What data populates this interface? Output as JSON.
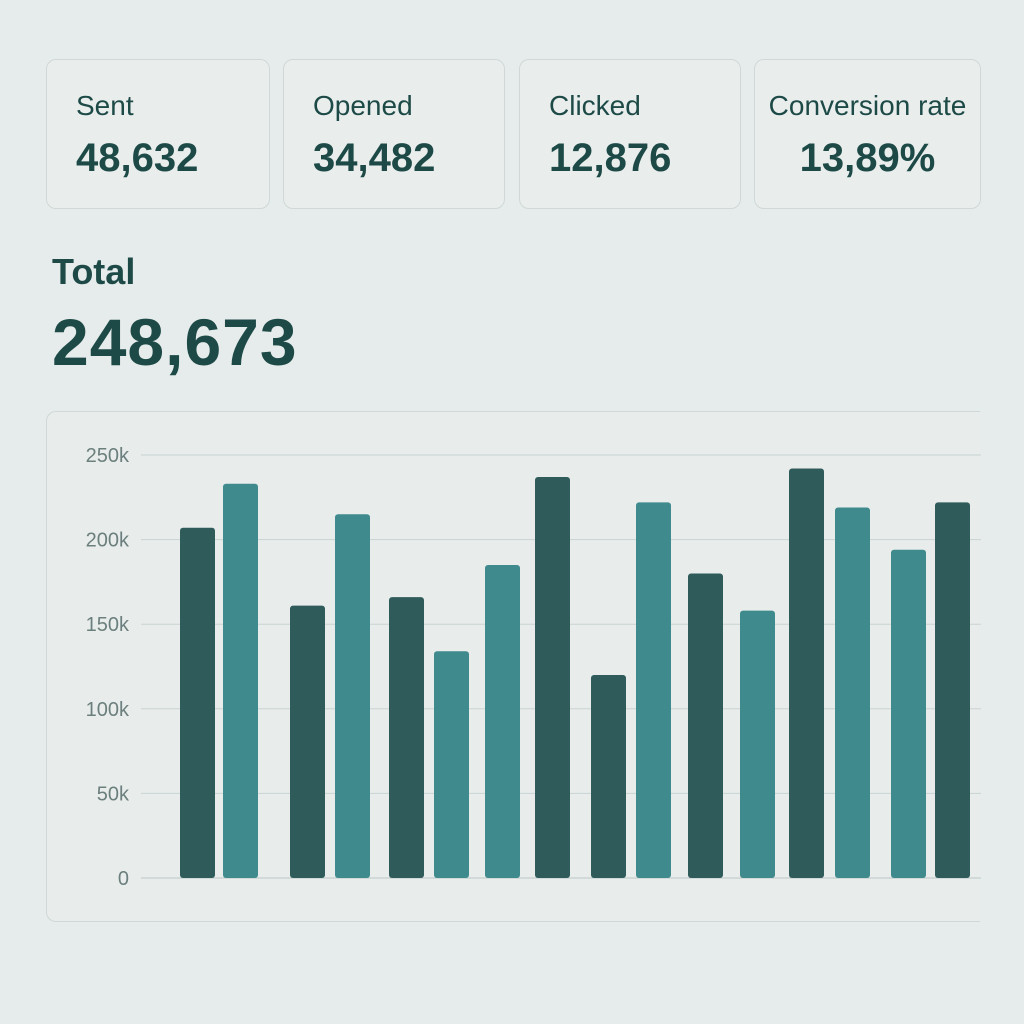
{
  "stats": [
    {
      "label": "Sent",
      "value": "48,632"
    },
    {
      "label": "Opened",
      "value": "34,482"
    },
    {
      "label": "Clicked",
      "value": "12,876"
    },
    {
      "label": "Conversion rate",
      "value": "13,89%"
    }
  ],
  "total": {
    "label": "Total",
    "value": "248,673"
  },
  "colors": {
    "dark": "#2f5b5a",
    "light": "#3f8a8c",
    "grid": "#c9d3d2"
  },
  "chart_data": {
    "type": "bar",
    "title": "",
    "xlabel": "",
    "ylabel": "",
    "ylim": [
      0,
      250000
    ],
    "y_ticks": [
      "0",
      "50k",
      "100k",
      "150k",
      "200k",
      "250k"
    ],
    "grid": true,
    "bars": [
      {
        "value": 207000,
        "shade": "dark"
      },
      {
        "value": 233000,
        "shade": "light"
      },
      {
        "value": 161000,
        "shade": "dark"
      },
      {
        "value": 215000,
        "shade": "light"
      },
      {
        "value": 166000,
        "shade": "dark"
      },
      {
        "value": 134000,
        "shade": "light"
      },
      {
        "value": 185000,
        "shade": "light"
      },
      {
        "value": 237000,
        "shade": "dark"
      },
      {
        "value": 120000,
        "shade": "dark"
      },
      {
        "value": 222000,
        "shade": "light"
      },
      {
        "value": 180000,
        "shade": "dark"
      },
      {
        "value": 158000,
        "shade": "light"
      },
      {
        "value": 242000,
        "shade": "dark"
      },
      {
        "value": 219000,
        "shade": "light"
      },
      {
        "value": 194000,
        "shade": "light"
      },
      {
        "value": 222000,
        "shade": "dark"
      }
    ]
  }
}
